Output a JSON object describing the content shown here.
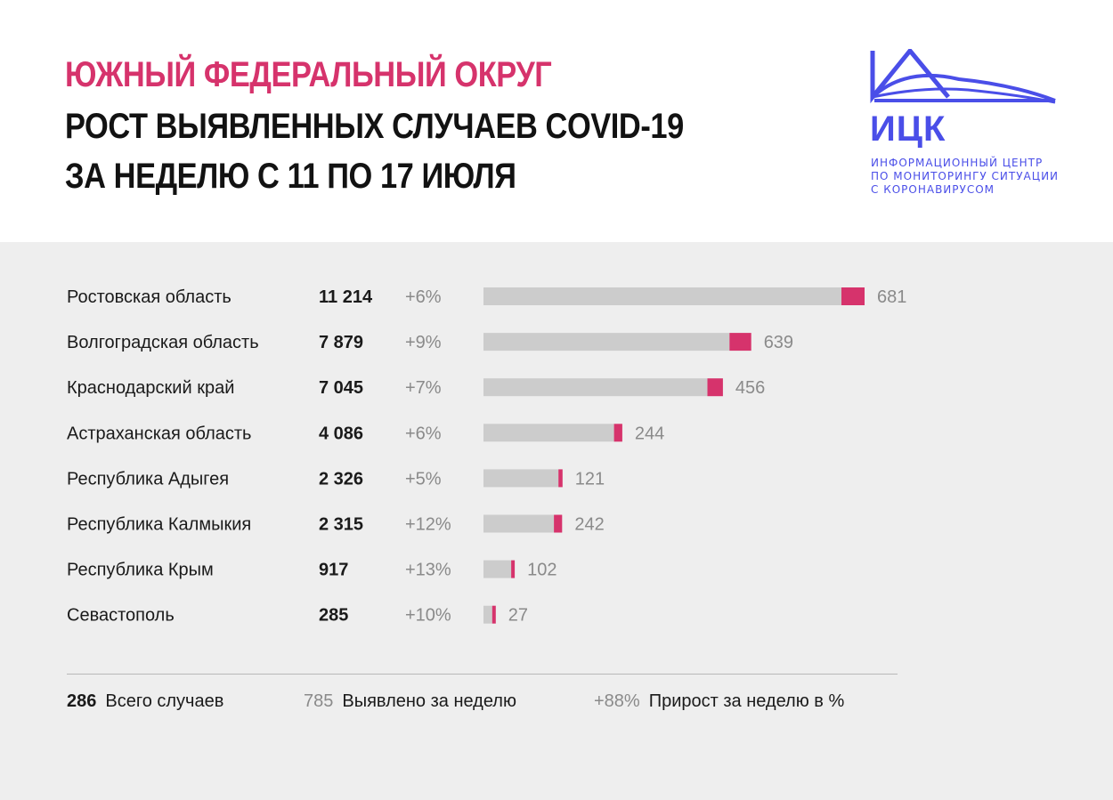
{
  "header": {
    "title_line1": "ЮЖНЫЙ ФЕДЕРАЛЬНЫЙ ОКРУГ",
    "title_line2": "РОСТ ВЫЯВЛЕННЫХ СЛУЧАЕВ COVID-19",
    "title_line3": "ЗА НЕДЕЛЮ С 11 ПО 17 ИЮЛЯ"
  },
  "logo": {
    "abbr": "ИЦК",
    "line1": "ИНФОРМАЦИОННЫЙ ЦЕНТР",
    "line2": "ПО МОНИТОРИНГУ СИТУАЦИИ",
    "line3": "С КОРОНАВИРУСОМ",
    "color": "#4a4ee8"
  },
  "colors": {
    "accent": "#d6336c",
    "bar_total": "#cccccc",
    "panel_bg": "#eeeeee"
  },
  "chart_data": {
    "type": "bar",
    "orientation": "horizontal",
    "stacked": true,
    "categories": [
      "Ростовская область",
      "Волгоградская область",
      "Краснодарский край",
      "Астраханская область",
      "Республика Адыгея",
      "Республика Калмыкия",
      "Республика Крым",
      "Севастополь"
    ],
    "total_cases": [
      "11 214",
      "7 879",
      "7 045",
      "4 086",
      "2 326",
      "2 315",
      "917",
      "285"
    ],
    "growth_percent": [
      "+6%",
      "+9%",
      "+7%",
      "+6%",
      "+5%",
      "+12%",
      "+13%",
      "+10%"
    ],
    "weekly_labels": [
      "681",
      "639",
      "456",
      "244",
      "121",
      "242",
      "102",
      "27"
    ],
    "series": [
      {
        "name": "Всего случаев",
        "values": [
          11214,
          7879,
          7045,
          4086,
          2326,
          2315,
          917,
          285
        ]
      },
      {
        "name": "Выявлено за неделю",
        "values": [
          681,
          639,
          456,
          244,
          121,
          242,
          102,
          27
        ]
      }
    ]
  },
  "legend": {
    "total": {
      "num": "286",
      "label": "Всего случаев"
    },
    "weekly": {
      "num": "785",
      "label": "Выявлено за неделю"
    },
    "growth": {
      "num": "+88%",
      "label": "Прирост за неделю в %"
    }
  }
}
